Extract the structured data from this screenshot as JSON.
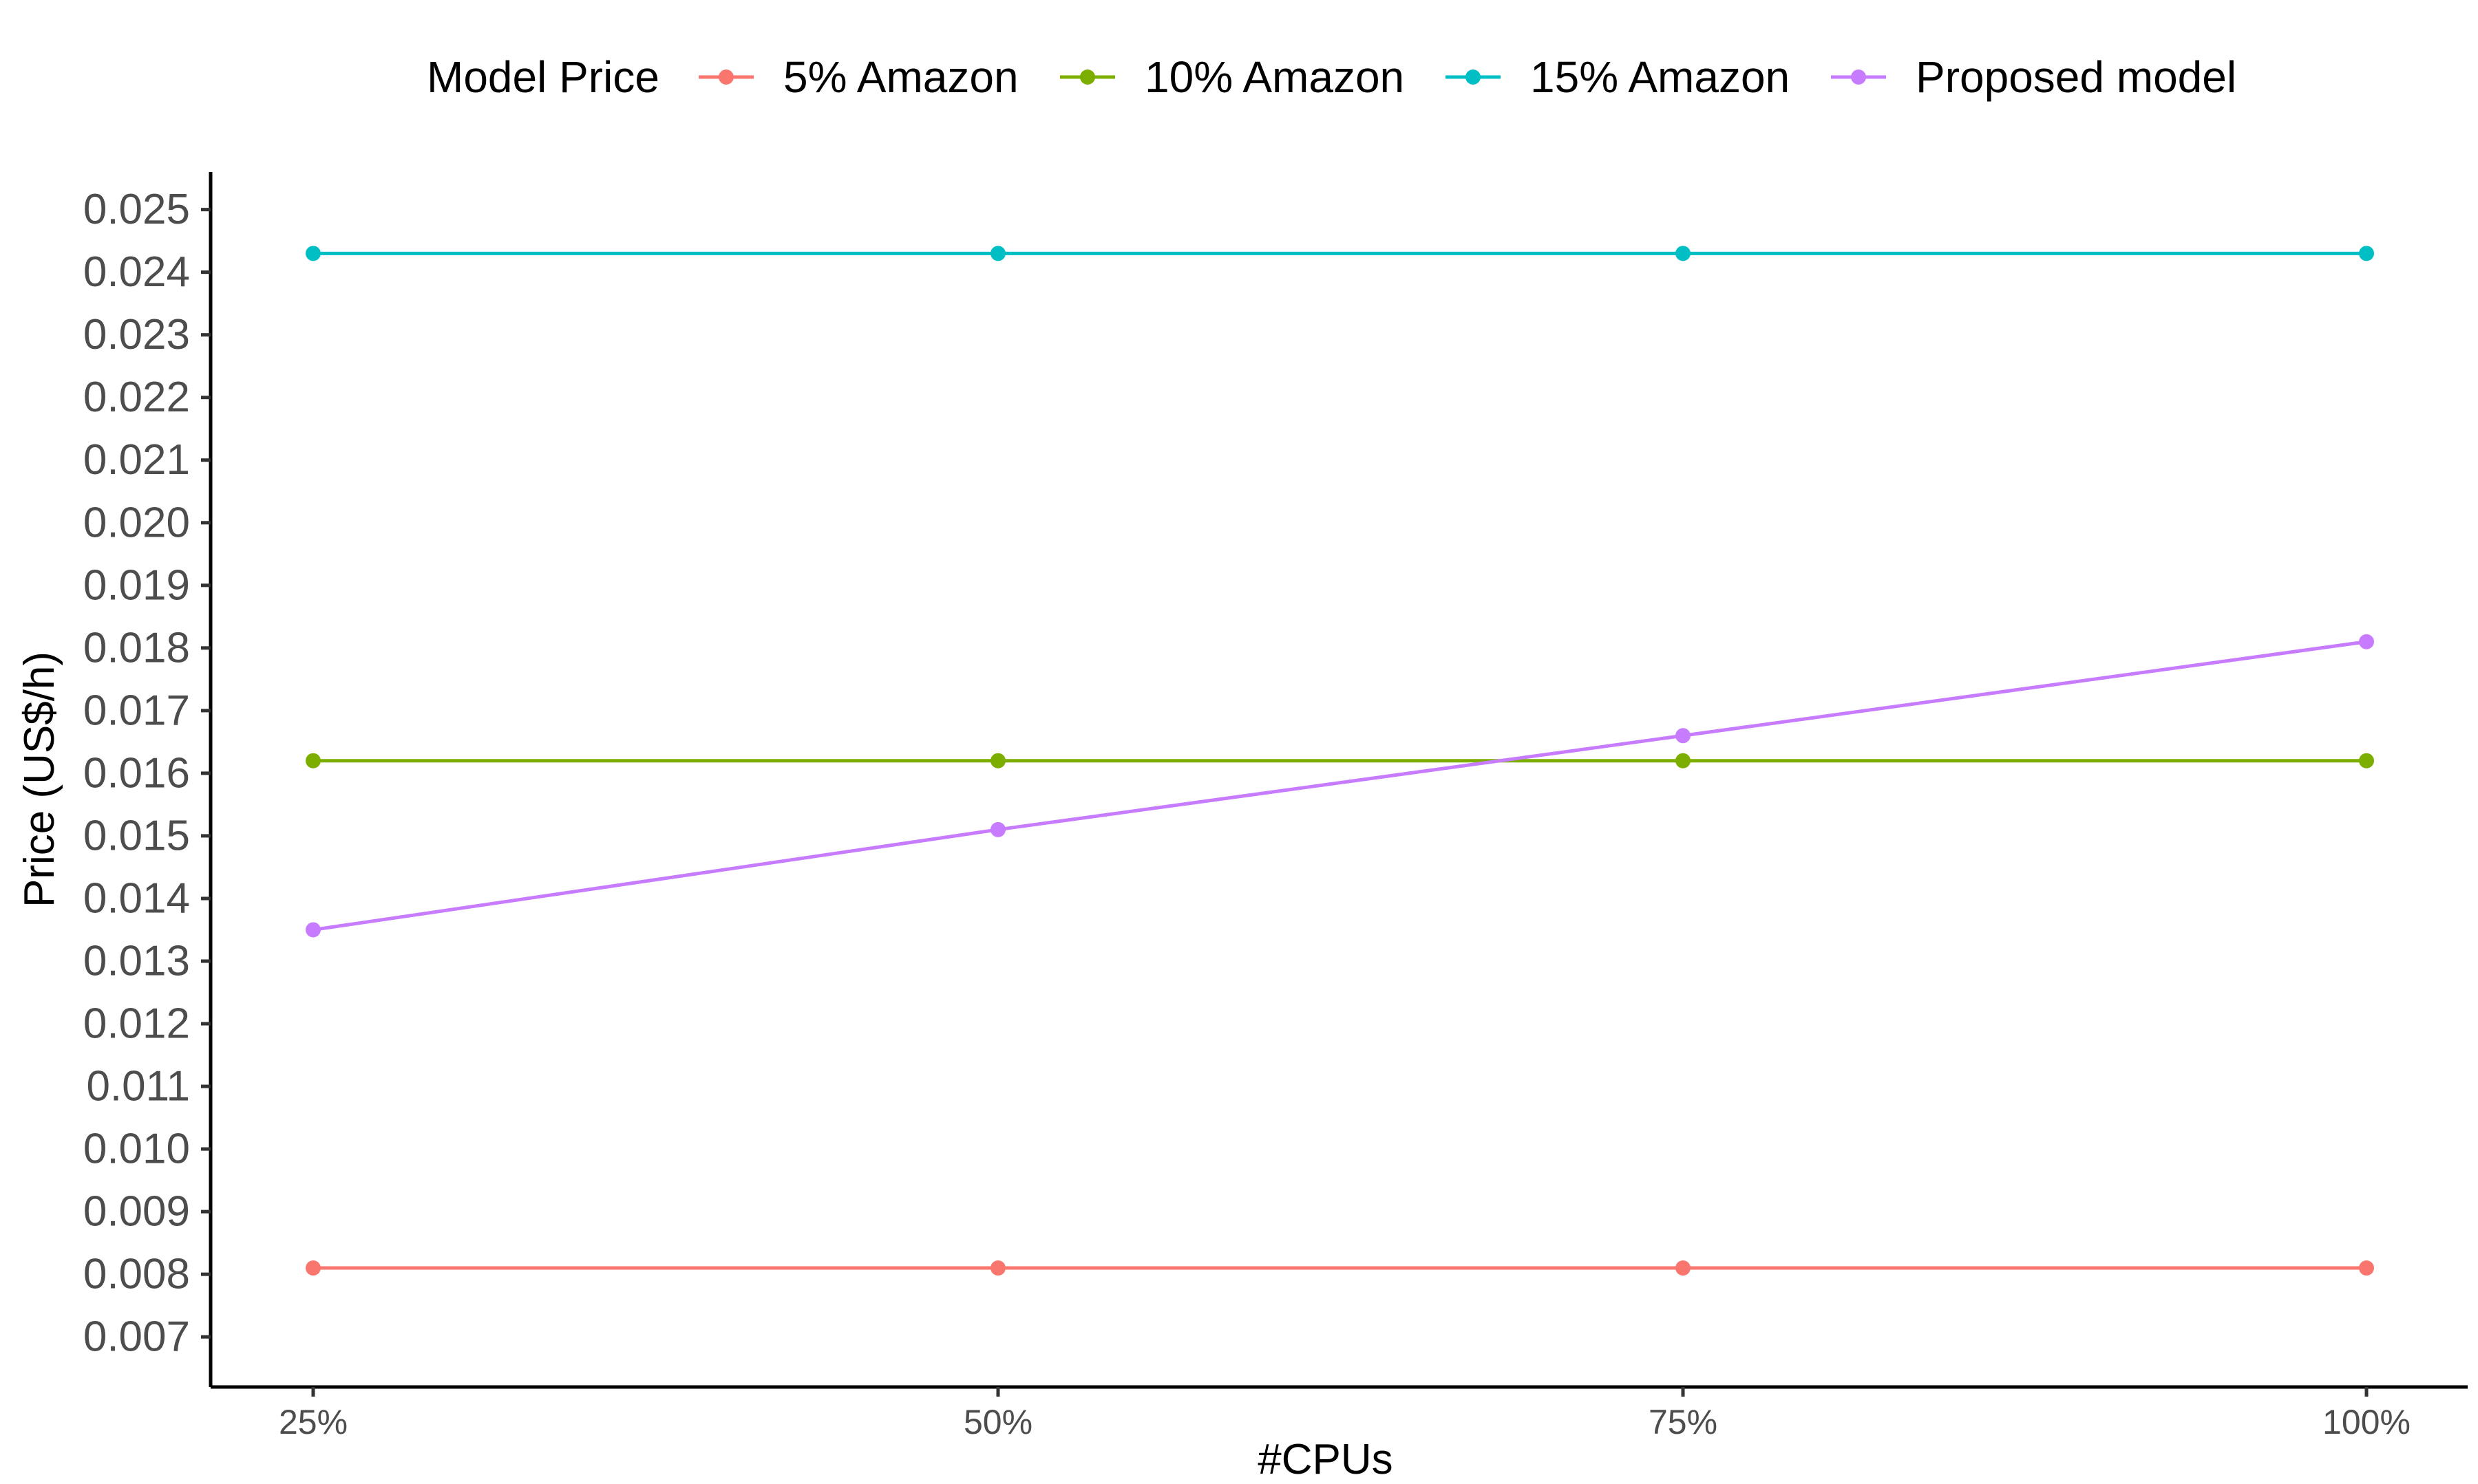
{
  "chart_data": {
    "type": "line",
    "title": "",
    "xlabel": "#CPUs",
    "ylabel": "Price (US$/h)",
    "categories": [
      "25%",
      "50%",
      "75%",
      "100%"
    ],
    "ylim": [
      0.0062,
      0.0256
    ],
    "yticks": [
      "0.007",
      "0.008",
      "0.009",
      "0.010",
      "0.011",
      "0.012",
      "0.013",
      "0.014",
      "0.015",
      "0.016",
      "0.017",
      "0.018",
      "0.019",
      "0.020",
      "0.021",
      "0.022",
      "0.023",
      "0.024",
      "0.025"
    ],
    "grid": false,
    "legend": {
      "title": "Model Price",
      "placement": "top"
    },
    "series": [
      {
        "name": "5% Amazon",
        "color": "#F8766D",
        "values": [
          0.0081,
          0.0081,
          0.0081,
          0.0081
        ]
      },
      {
        "name": "10% Amazon",
        "color": "#7CAE00",
        "values": [
          0.0162,
          0.0162,
          0.0162,
          0.0162
        ]
      },
      {
        "name": "15% Amazon",
        "color": "#00BFC4",
        "values": [
          0.0243,
          0.0243,
          0.0243,
          0.0243
        ]
      },
      {
        "name": "Proposed model",
        "color": "#C77CFF",
        "values": [
          0.0135,
          0.0151,
          0.0166,
          0.0181
        ]
      }
    ]
  }
}
